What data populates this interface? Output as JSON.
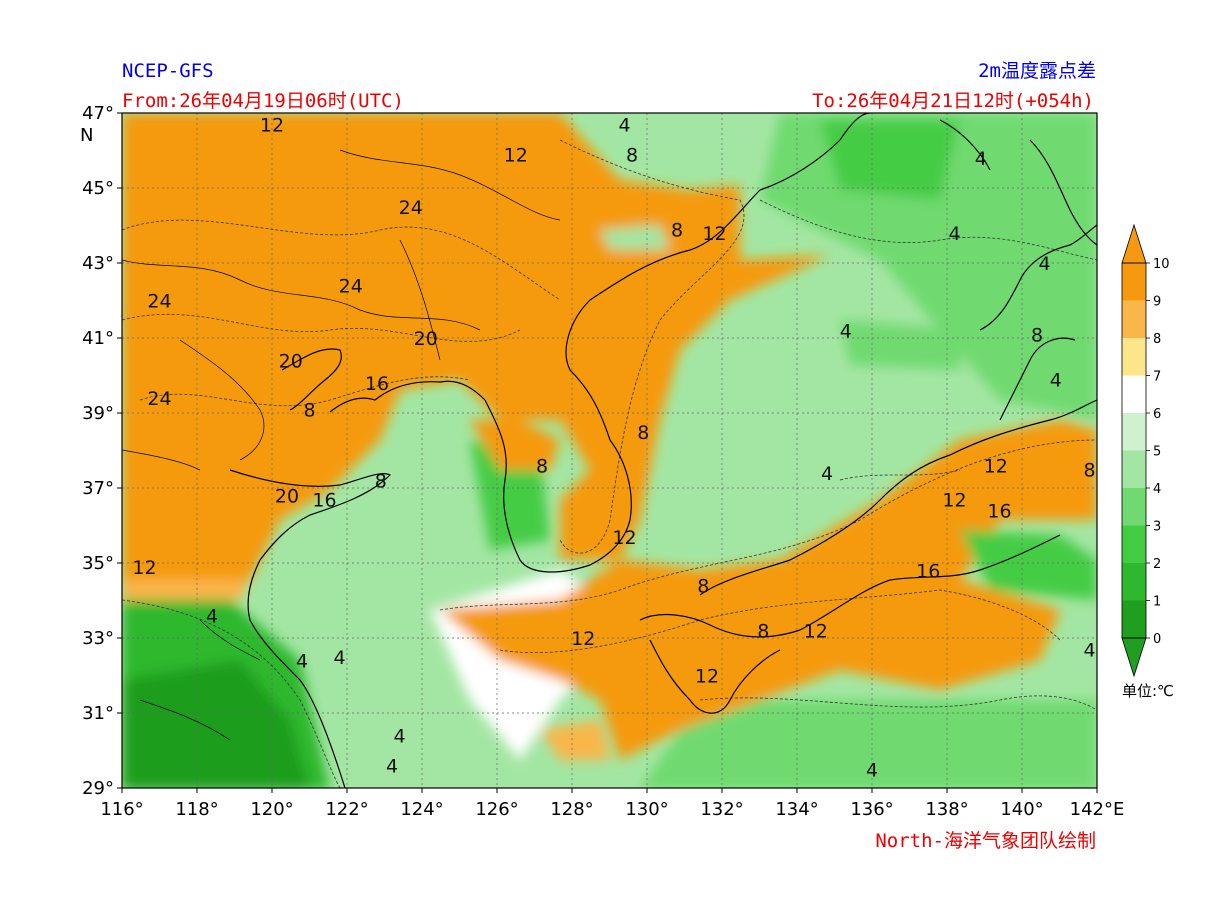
{
  "header": {
    "model": "NCEP-GFS",
    "product": "2m温度露点差",
    "from": "From:26年04月19日06时(UTC)",
    "to": "To:26年04月21日12时(+054h)"
  },
  "footer": {
    "credit": "North-海洋气象团队绘制"
  },
  "colorbar": {
    "unit": "单位:℃",
    "levels": [
      0,
      1,
      2,
      3,
      4,
      5,
      6,
      7,
      8,
      9,
      10
    ],
    "colors": [
      "#1f9e1f",
      "#2fb82f",
      "#45cc45",
      "#70da70",
      "#a3e6a3",
      "#cdf2cd",
      "#ffffff",
      "#fde68a",
      "#f9b64a",
      "#f59a10"
    ]
  },
  "axes": {
    "lon_ticks": [
      116,
      118,
      120,
      122,
      124,
      126,
      128,
      130,
      132,
      134,
      136,
      138,
      140,
      142
    ],
    "lat_ticks": [
      29,
      31,
      33,
      35,
      37,
      39,
      41,
      43,
      45,
      47
    ],
    "lon_suffix": "E",
    "lat_suffix": "N",
    "degree": "°"
  },
  "contour_labels": [
    {
      "text": "12",
      "lon": 120.0,
      "lat": 46.7
    },
    {
      "text": "12",
      "lon": 126.5,
      "lat": 45.9
    },
    {
      "text": "8",
      "lon": 129.6,
      "lat": 45.9
    },
    {
      "text": "4",
      "lon": 129.4,
      "lat": 46.7
    },
    {
      "text": "24",
      "lon": 123.7,
      "lat": 44.5
    },
    {
      "text": "12",
      "lon": 131.8,
      "lat": 43.8
    },
    {
      "text": "8",
      "lon": 130.8,
      "lat": 43.9
    },
    {
      "text": "4",
      "lon": 138.9,
      "lat": 45.8
    },
    {
      "text": "4",
      "lon": 138.2,
      "lat": 43.8
    },
    {
      "text": "4",
      "lon": 140.6,
      "lat": 43.0
    },
    {
      "text": "24",
      "lon": 117.0,
      "lat": 42.0
    },
    {
      "text": "24",
      "lon": 122.1,
      "lat": 42.4
    },
    {
      "text": "20",
      "lon": 124.1,
      "lat": 41.0
    },
    {
      "text": "4",
      "lon": 135.3,
      "lat": 41.2
    },
    {
      "text": "8",
      "lon": 140.4,
      "lat": 41.1
    },
    {
      "text": "20",
      "lon": 120.5,
      "lat": 40.4
    },
    {
      "text": "16",
      "lon": 122.8,
      "lat": 39.8
    },
    {
      "text": "4",
      "lon": 140.9,
      "lat": 39.9
    },
    {
      "text": "24",
      "lon": 117.0,
      "lat": 39.4
    },
    {
      "text": "8",
      "lon": 121.0,
      "lat": 39.1
    },
    {
      "text": "8",
      "lon": 129.9,
      "lat": 38.5
    },
    {
      "text": "8",
      "lon": 127.2,
      "lat": 37.6
    },
    {
      "text": "8",
      "lon": 122.9,
      "lat": 37.2
    },
    {
      "text": "4",
      "lon": 134.8,
      "lat": 37.4
    },
    {
      "text": "12",
      "lon": 139.3,
      "lat": 37.6
    },
    {
      "text": "8",
      "lon": 141.8,
      "lat": 37.5
    },
    {
      "text": "12",
      "lon": 138.2,
      "lat": 36.7
    },
    {
      "text": "16",
      "lon": 139.4,
      "lat": 36.4
    },
    {
      "text": "20",
      "lon": 120.4,
      "lat": 36.8
    },
    {
      "text": "16",
      "lon": 121.4,
      "lat": 36.7
    },
    {
      "text": "12",
      "lon": 129.4,
      "lat": 35.7
    },
    {
      "text": "12",
      "lon": 116.6,
      "lat": 34.9
    },
    {
      "text": "4",
      "lon": 118.4,
      "lat": 33.6
    },
    {
      "text": "8",
      "lon": 131.5,
      "lat": 34.4
    },
    {
      "text": "16",
      "lon": 137.5,
      "lat": 34.8
    },
    {
      "text": "12",
      "lon": 128.3,
      "lat": 33.0
    },
    {
      "text": "8",
      "lon": 133.1,
      "lat": 33.2
    },
    {
      "text": "12",
      "lon": 134.5,
      "lat": 33.2
    },
    {
      "text": "4",
      "lon": 121.8,
      "lat": 32.5
    },
    {
      "text": "4",
      "lon": 120.8,
      "lat": 32.4
    },
    {
      "text": "12",
      "lon": 131.6,
      "lat": 32.0
    },
    {
      "text": "4",
      "lon": 141.8,
      "lat": 32.7
    },
    {
      "text": "4",
      "lon": 123.4,
      "lat": 30.4
    },
    {
      "text": "4",
      "lon": 123.2,
      "lat": 29.6
    },
    {
      "text": "4",
      "lon": 136.0,
      "lat": 29.5
    }
  ]
}
